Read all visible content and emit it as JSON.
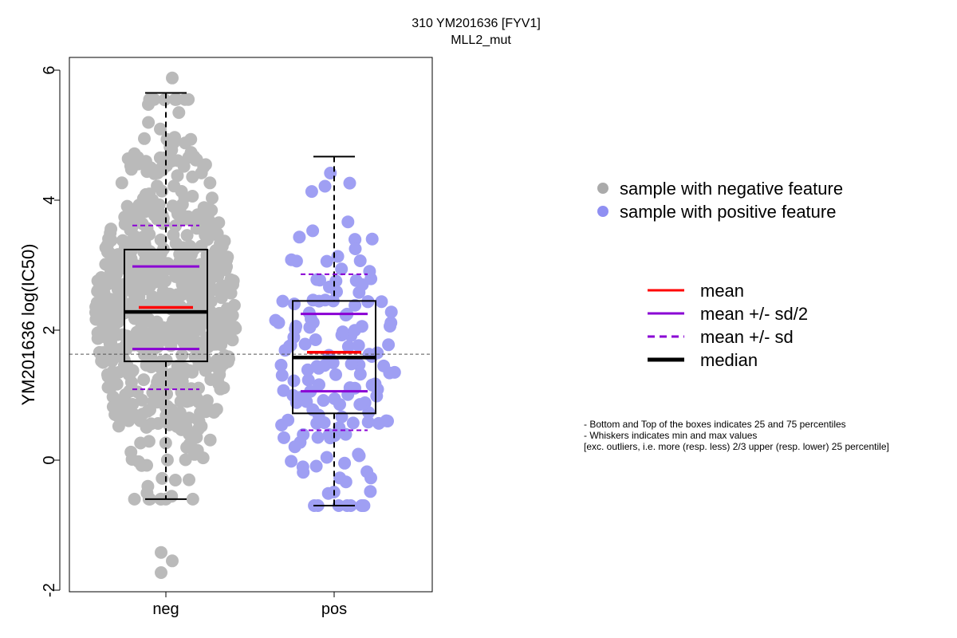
{
  "chart_data": {
    "type": "scatter",
    "subtype": "beeswarm-boxplot",
    "title": "310 YM201636 [FYV1]",
    "subtitle": "MLL2_mut",
    "xlabel": "",
    "ylabel": "YM201636 log(IC50)",
    "ylim": [
      -2.05,
      6.15
    ],
    "y_ticks": [
      -2,
      0,
      2,
      4,
      6
    ],
    "y_tick_labels": [
      "-2",
      "0",
      "2",
      "4",
      "6"
    ],
    "categories": [
      "neg",
      "pos"
    ],
    "reference_line_y": 1.63,
    "grid": false,
    "legend_position": "right",
    "colors": {
      "neg_points": "#aaaaaa",
      "pos_points": "#8f8ff2",
      "mean": "#ff0000",
      "sd": "#8a00d4",
      "median": "#000000"
    },
    "groups": [
      {
        "name": "neg",
        "n_points": 720,
        "box": {
          "q1": 1.52,
          "median": 2.28,
          "q3": 3.24,
          "whisker_low": -0.6,
          "whisker_high": 5.65,
          "mean": 2.35,
          "mean_minus_half_sd": 1.71,
          "mean_plus_half_sd": 2.98,
          "mean_minus_sd": 1.09,
          "mean_plus_sd": 3.61
        },
        "outliers": [
          -1.42,
          -1.55,
          -1.73,
          5.88
        ]
      },
      {
        "name": "pos",
        "n_points": 150,
        "box": {
          "q1": 0.72,
          "median": 1.58,
          "q3": 2.45,
          "whisker_low": -0.7,
          "whisker_high": 4.67,
          "mean": 1.66,
          "mean_minus_half_sd": 1.06,
          "mean_plus_half_sd": 2.25,
          "mean_minus_sd": 0.46,
          "mean_plus_sd": 2.86
        },
        "outliers": []
      }
    ]
  },
  "legend": {
    "points": [
      {
        "label": "sample with negative feature",
        "color": "#aaaaaa"
      },
      {
        "label": "sample with positive feature",
        "color": "#8f8ff2"
      }
    ],
    "lines": [
      {
        "label": "mean",
        "color": "#ff0000",
        "style": "solid"
      },
      {
        "label": "mean +/- sd/2",
        "color": "#8a00d4",
        "style": "solid"
      },
      {
        "label": "mean +/- sd",
        "color": "#8a00d4",
        "style": "dashed"
      },
      {
        "label": "median",
        "color": "#000000",
        "style": "thick"
      }
    ]
  },
  "notes": [
    "- Bottom and Top of the boxes indicates 25 and 75 percentiles",
    "- Whiskers indicates min and max values",
    "[exc. outliers, i.e. more (resp. less) 2/3 upper (resp. lower) 25 percentile]"
  ]
}
